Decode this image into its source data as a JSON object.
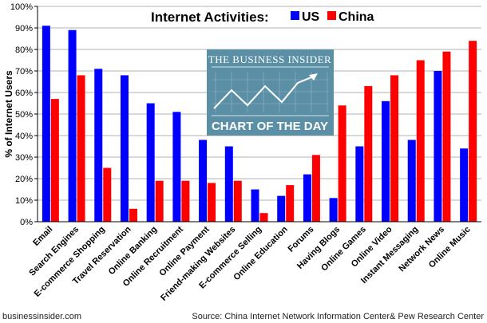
{
  "chart_data": {
    "type": "bar",
    "title": "Internet Activities:",
    "ylabel": "% of Internet Users",
    "ylim": [
      0,
      100
    ],
    "yticks": [
      "0%",
      "10%",
      "20%",
      "30%",
      "40%",
      "50%",
      "60%",
      "70%",
      "80%",
      "90%",
      "100%"
    ],
    "grid": true,
    "legend_position": "top",
    "categories": [
      "Email",
      "Search Engines",
      "E-commerce Shopping",
      "Travel Reservation",
      "Online Banking",
      "Online Recruitment",
      "Online Payment",
      "Friend-making Websites",
      "E-commerce Selling",
      "Online Education",
      "Forums",
      "Having Blogs",
      "Online Games",
      "Online Video",
      "Instant Messaging",
      "Network News",
      "Online Music"
    ],
    "series": [
      {
        "name": "US",
        "color": "#0000ff",
        "values": [
          91,
          89,
          71,
          68,
          55,
          51,
          38,
          35,
          15,
          12,
          22,
          11,
          35,
          56,
          38,
          70,
          34
        ]
      },
      {
        "name": "China",
        "color": "#ff0000",
        "values": [
          57,
          68,
          25,
          6,
          19,
          19,
          18,
          19,
          4,
          17,
          31,
          54,
          63,
          68,
          75,
          79,
          84
        ]
      }
    ]
  },
  "badge": {
    "top_text": "THE BUSINESS INSIDER",
    "bottom_text": "CHART OF THE DAY",
    "color": "#5b8fa6"
  },
  "footer": {
    "left": "businessinsider.com",
    "right": "Source: China Internet Network Information Center& Pew Research Center"
  }
}
